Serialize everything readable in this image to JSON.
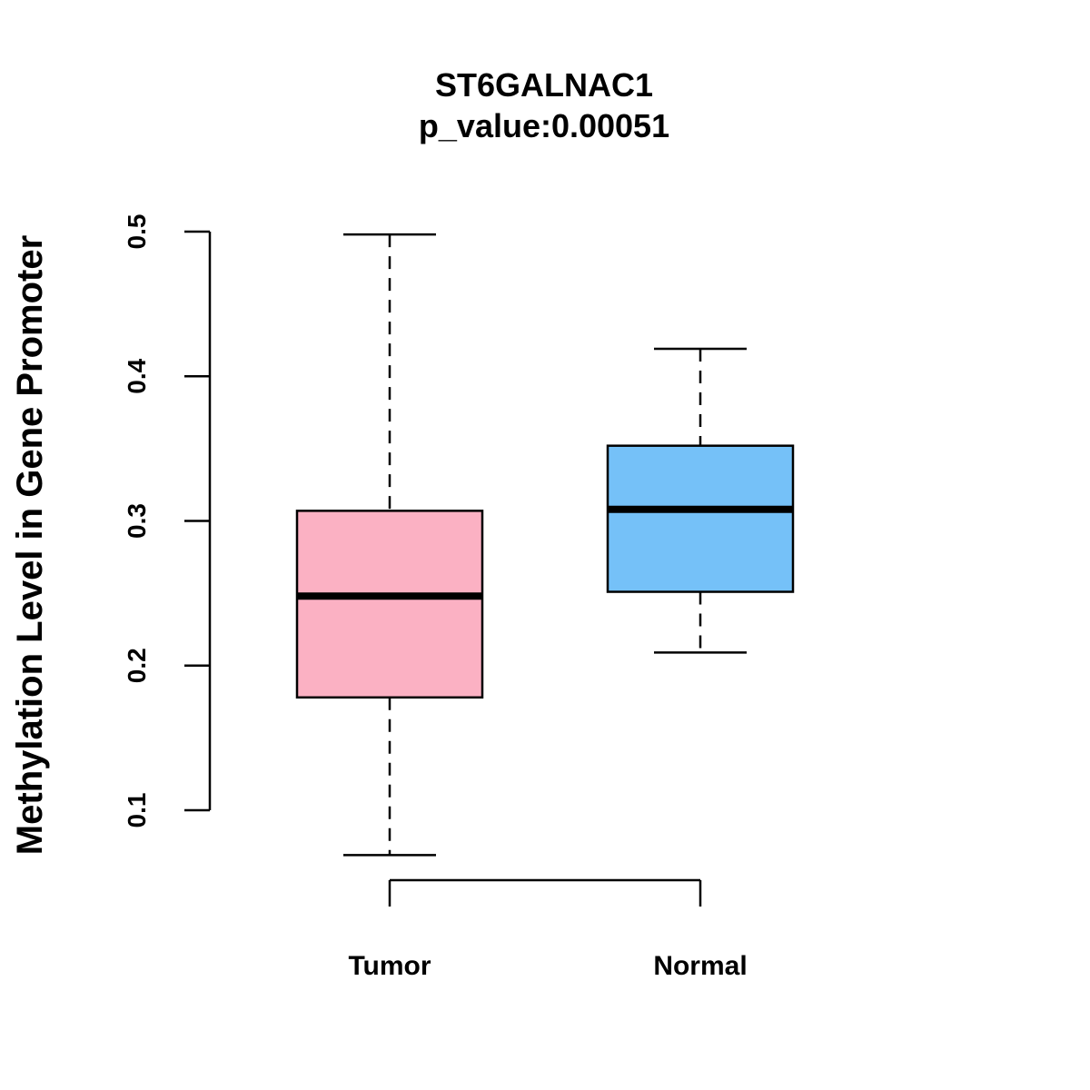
{
  "chart_data": {
    "type": "boxplot",
    "title": "ST6GALNAC1",
    "subtitle": "p_value:0.00051",
    "xlabel": "",
    "ylabel": "Methylation Level in Gene Promoter",
    "ylim": [
      0.04,
      0.52
    ],
    "yticks": [
      0.1,
      0.2,
      0.3,
      0.4,
      0.5
    ],
    "ytick_labels": [
      "0.1",
      "0.2",
      "0.3",
      "0.4",
      "0.5"
    ],
    "categories": [
      "Tumor",
      "Normal"
    ],
    "boxes": [
      {
        "name": "Tumor",
        "whisker_low": 0.069,
        "q1": 0.178,
        "median": 0.248,
        "q3": 0.307,
        "whisker_high": 0.498,
        "color": "#FBB1C3"
      },
      {
        "name": "Normal",
        "whisker_low": 0.209,
        "q1": 0.251,
        "median": 0.308,
        "q3": 0.352,
        "whisker_high": 0.419,
        "color": "#75C1F8"
      }
    ],
    "grid": false
  }
}
